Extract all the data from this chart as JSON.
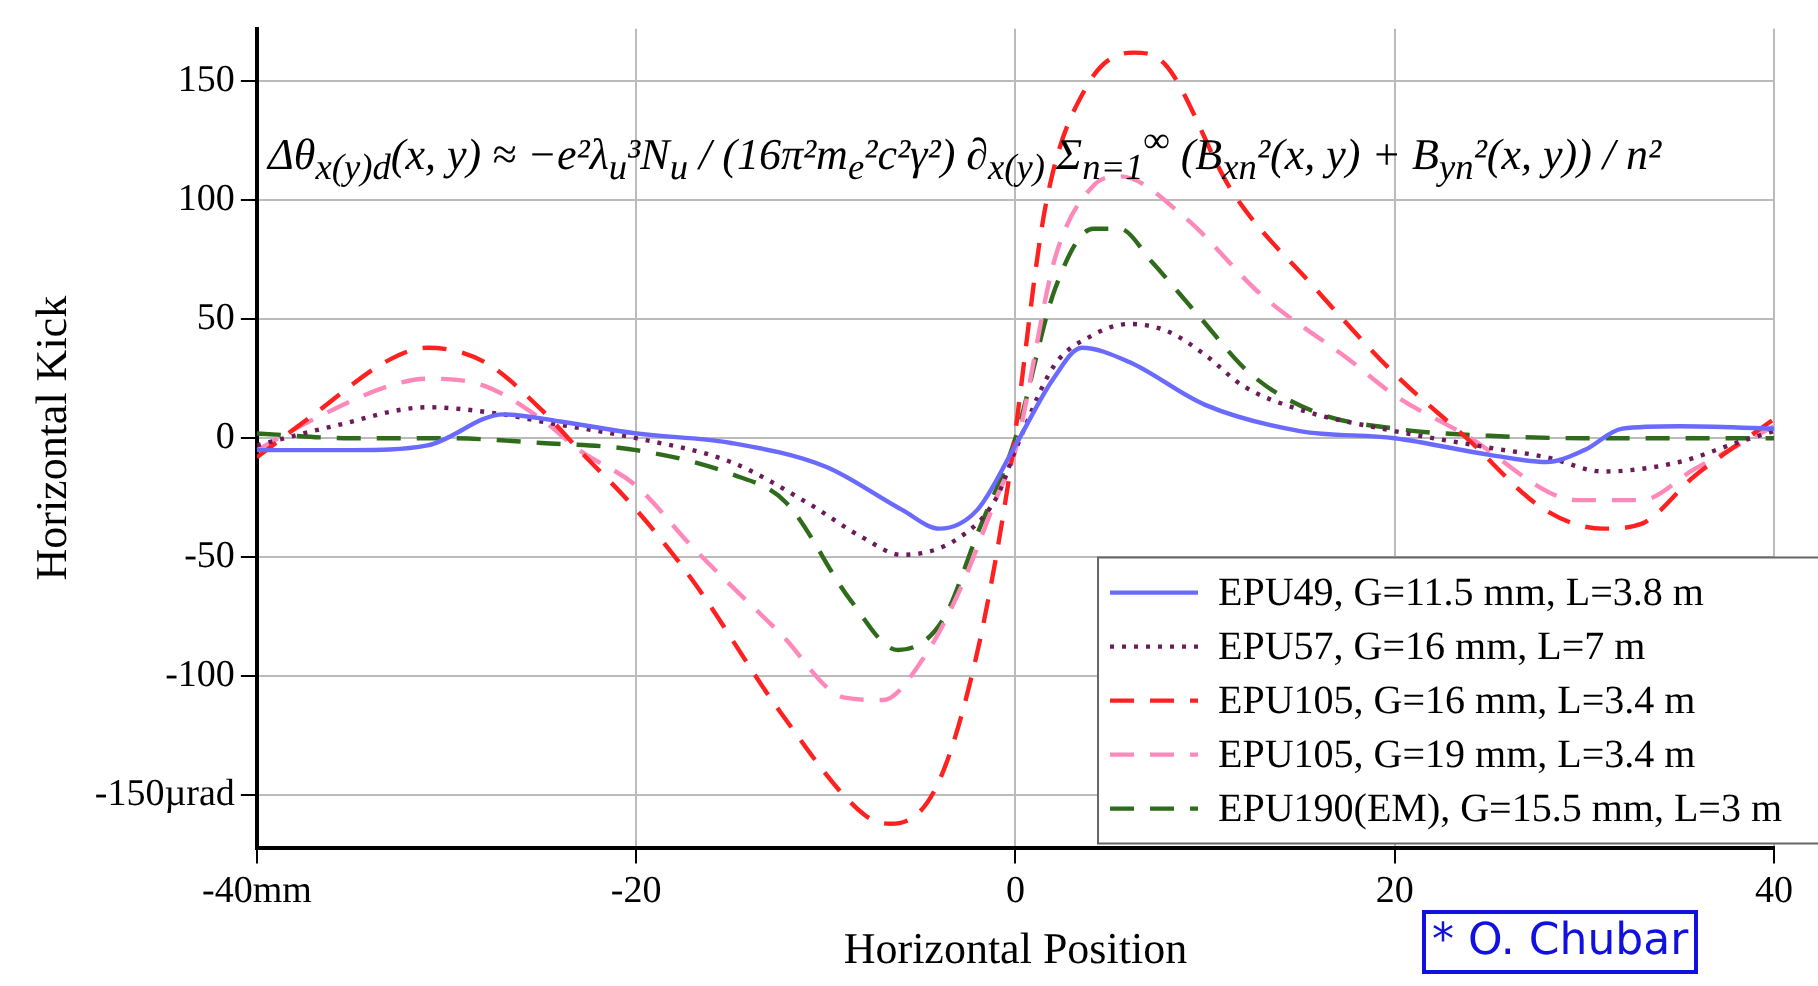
{
  "chart_data": {
    "type": "line",
    "xlabel": "Horizontal Position",
    "ylabel": "Horizontal Kick",
    "xlim": [
      -40,
      40
    ],
    "xticks": [
      {
        "value": -40,
        "label": "-40mm"
      },
      -20,
      0,
      20,
      40
    ],
    "ylim": [
      -172,
      172
    ],
    "yticks": [
      {
        "value": -150,
        "label": "-150µrad"
      },
      -100,
      -50,
      0,
      50,
      100,
      150
    ],
    "grid": true,
    "legend": "bottom right",
    "marker": "none",
    "annotations": [
      "Δθ$_{x(y)d}$(x, y) ≈ −e²λ$_{u}$³N$_{u}$ / (16π²m$_{e}$²c²γ²) ∂$_{x(y)}$ Σ$_{n=1}$$^{∞}$ (B$_{xn}$²(x, y) + B$_{yn}$²(x, y)) / n²",
      "* O. Chubar"
    ],
    "series": [
      {
        "name": "EPU49, G=11.5 mm, L=3.8 m",
        "color": "#6a6aff",
        "line_style": "solid",
        "x": [
          -40,
          -35,
          -31,
          -27,
          -24,
          -20,
          -15,
          -10,
          -6,
          -4,
          -2,
          0,
          2,
          3.5,
          6,
          10,
          15,
          20,
          25,
          28,
          30,
          32,
          35,
          40
        ],
        "values": [
          -5,
          -5,
          -3,
          10,
          7,
          2,
          -2,
          -12,
          -30,
          -38,
          -30,
          -3,
          25,
          38,
          32,
          14,
          3,
          0,
          -7,
          -10,
          -5,
          4,
          5,
          4
        ]
      },
      {
        "name": "EPU57, G=16 mm, L=7 m",
        "color": "#6b1a5a",
        "line_style": "dotted",
        "x": [
          -40,
          -36,
          -31,
          -27,
          -25,
          -20,
          -15,
          -11,
          -8,
          -6,
          -3,
          -1,
          0,
          2,
          4,
          6,
          8,
          10,
          12,
          15,
          20,
          25,
          28,
          31,
          35,
          38,
          40
        ],
        "values": [
          -3,
          5,
          13,
          10,
          7,
          0,
          -10,
          -27,
          -42,
          -49,
          -42,
          -25,
          -5,
          30,
          43,
          48,
          45,
          35,
          22,
          12,
          3,
          -4,
          -8,
          -14,
          -10,
          -2,
          3
        ]
      },
      {
        "name": "EPU105, G=16 mm, L=3.4 m",
        "color": "#ff2020",
        "line_style": "dashed",
        "x": [
          -40,
          -37,
          -33,
          -31,
          -28,
          -25,
          -23,
          -20,
          -17,
          -12.4,
          -8,
          -6.6,
          -4.2,
          -2.1,
          -0.4,
          1.6,
          3.7,
          6.2,
          7.9,
          11.4,
          15.8,
          20,
          23.8,
          27.9,
          31,
          33,
          35.8,
          40
        ],
        "values": [
          -8,
          10,
          33,
          38,
          32,
          12,
          -5,
          -30,
          -60,
          -115,
          -158,
          -162,
          -147,
          -93,
          -20,
          98,
          147,
          162,
          157,
          104,
          63,
          27,
          0,
          -30,
          -38,
          -36,
          -16,
          8
        ]
      },
      {
        "name": "EPU105, G=19 mm, L=3.4 m",
        "color": "#ff88bb",
        "line_style": "dashed",
        "x": [
          -40,
          -37,
          -33,
          -31,
          -28,
          -25,
          -23,
          -20,
          -17,
          -12.4,
          -9,
          -7,
          -4.9,
          -3,
          -1,
          0,
          2.1,
          4.1,
          5.5,
          8.9,
          13,
          17.6,
          20,
          24,
          28.2,
          29.6,
          33,
          35.8,
          40
        ],
        "values": [
          -5,
          8,
          22,
          25,
          22,
          8,
          -5,
          -20,
          -46,
          -82,
          -109,
          -110,
          -93,
          -65,
          -25,
          -5,
          76,
          106,
          110,
          93,
          60,
          33,
          18,
          0,
          -23,
          -26,
          -26,
          -13,
          5
        ]
      },
      {
        "name": "EPU190(EM), G=15.5 mm, L=3 m",
        "color": "#2e6b1a",
        "line_style": "dashed",
        "x": [
          -40,
          -35,
          -30,
          -25,
          -20,
          -15,
          -12.1,
          -8.7,
          -6.2,
          -3.8,
          -2,
          0,
          2.1,
          4.1,
          5.5,
          7.2,
          9.6,
          12.4,
          15.8,
          20,
          25,
          30,
          35,
          40
        ],
        "values": [
          2,
          0,
          0,
          -2,
          -5,
          -15,
          -27,
          -68,
          -89,
          -76,
          -40,
          0,
          63,
          88,
          88,
          74,
          52,
          27,
          11,
          4,
          1,
          0,
          0,
          0
        ]
      }
    ]
  }
}
